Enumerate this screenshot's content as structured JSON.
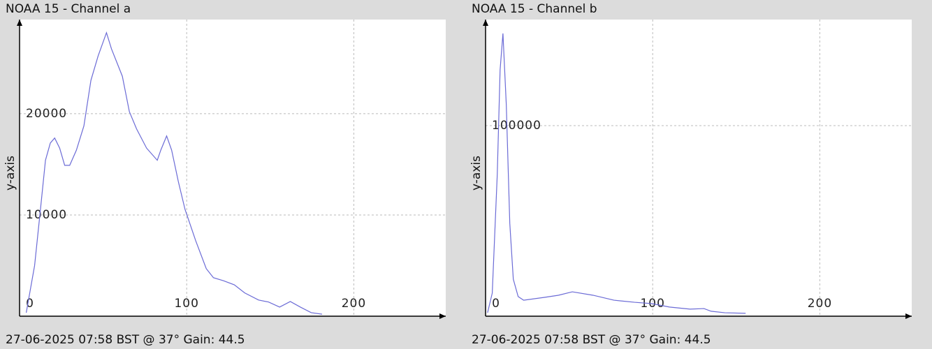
{
  "chart_data": [
    {
      "type": "line",
      "title": "NOAA 15 - Channel a",
      "footer": "27-06-2025 07:58 BST @ 37° Gain: 44.5",
      "y_label": "y-axis",
      "xlim": [
        0,
        255
      ],
      "xticks": [
        0,
        100,
        200
      ],
      "ylim": [
        0,
        29300
      ],
      "yticks": [
        10000,
        20000
      ],
      "grid": true,
      "color": "#6b6bd6",
      "x": [
        4,
        9,
        12.5,
        15.5,
        18.4,
        21,
        24,
        27,
        30,
        34,
        38.5,
        42.7,
        47,
        52,
        55,
        61.5,
        65.7,
        70,
        76,
        82.4,
        84.5,
        88,
        91,
        95,
        99,
        105.4,
        111.7,
        116,
        122,
        128.5,
        134.7,
        143,
        149,
        155.6,
        162,
        168,
        174.5,
        181
      ],
      "values": [
        345,
        5000,
        10550,
        15400,
        17100,
        17600,
        16600,
        14900,
        14900,
        16400,
        18800,
        23300,
        25700,
        28000,
        26400,
        23700,
        20200,
        18500,
        16600,
        15400,
        16400,
        17800,
        16400,
        13300,
        10550,
        7450,
        4700,
        3800,
        3500,
        3100,
        2300,
        1600,
        1400,
        900,
        1450,
        900,
        350,
        200
      ]
    },
    {
      "type": "line",
      "title": "NOAA 15 - Channel b",
      "footer": "27-06-2025 07:58 BST @ 37° Gain: 44.5",
      "y_label": "y-axis",
      "xlim": [
        0,
        255
      ],
      "xticks": [
        0,
        100,
        200
      ],
      "ylim": [
        0,
        155700
      ],
      "yticks": [
        100000
      ],
      "grid": true,
      "color": "#6b6bd6",
      "x": [
        1.2,
        4,
        7,
        8.7,
        10.4,
        12.4,
        14.5,
        16.6,
        19.5,
        22.8,
        35.3,
        43.6,
        51.9,
        64.3,
        76.8,
        89.2,
        99.6,
        110,
        122.4,
        130.7,
        134.9,
        143.2,
        155.6
      ],
      "values": [
        1830,
        12100,
        74400,
        129300,
        148400,
        111000,
        48700,
        19400,
        10300,
        8400,
        9900,
        11000,
        12800,
        11000,
        8400,
        7300,
        6600,
        4800,
        3700,
        4000,
        2600,
        1800,
        1500
      ]
    }
  ]
}
